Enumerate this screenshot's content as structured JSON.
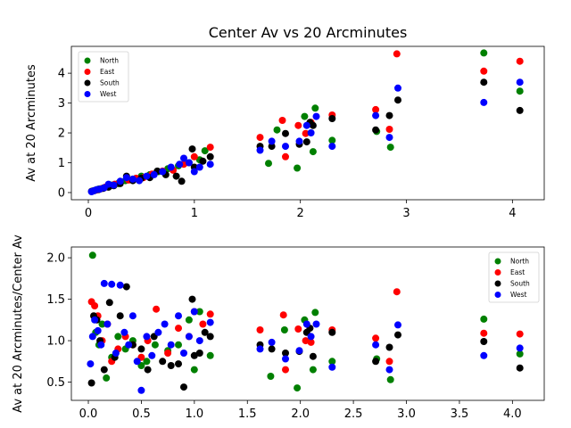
{
  "chart_data": [
    {
      "type": "scatter",
      "title": "Center Av vs 20 Arcminutes",
      "xlabel": "",
      "ylabel": "Av at 20 Arcminutes",
      "xlim": [
        -0.16,
        4.3
      ],
      "ylim": [
        -0.24,
        4.9
      ],
      "xticks": [
        0,
        1,
        2,
        3,
        4
      ],
      "yticks": [
        0,
        1,
        2,
        3,
        4
      ],
      "legend_position": "upper-left",
      "series": [
        {
          "name": "North",
          "color": "#008000",
          "x": [
            0.04,
            0.07,
            0.1,
            0.14,
            0.18,
            0.22,
            0.28,
            0.35,
            0.42,
            0.5,
            0.58,
            0.66,
            0.75,
            0.85,
            0.95,
            1.05,
            1.1,
            1.7,
            1.78,
            1.97,
            2.04,
            2.12,
            2.14,
            2.3,
            2.72,
            2.85,
            3.73,
            4.07
          ],
          "y": [
            0.05,
            0.08,
            0.12,
            0.15,
            0.2,
            0.25,
            0.3,
            0.4,
            0.45,
            0.55,
            0.6,
            0.7,
            0.8,
            0.9,
            1.0,
            1.1,
            1.4,
            0.98,
            2.1,
            0.82,
            2.55,
            1.37,
            2.83,
            1.75,
            2.05,
            1.52,
            4.68,
            3.4
          ]
        },
        {
          "name": "East",
          "color": "#ff0000",
          "x": [
            0.05,
            0.08,
            0.12,
            0.16,
            0.2,
            0.25,
            0.3,
            0.38,
            0.45,
            0.52,
            0.6,
            0.7,
            0.8,
            0.9,
            1.0,
            1.15,
            1.62,
            1.83,
            1.86,
            1.98,
            2.05,
            2.1,
            2.3,
            2.71,
            2.84,
            2.91,
            3.73,
            4.07
          ],
          "y": [
            0.06,
            0.09,
            0.13,
            0.18,
            0.22,
            0.28,
            0.35,
            0.42,
            0.48,
            0.5,
            0.62,
            0.72,
            0.75,
            0.95,
            1.2,
            1.52,
            1.85,
            2.42,
            1.2,
            2.25,
            1.98,
            2.35,
            2.6,
            2.78,
            2.12,
            4.65,
            4.07,
            4.4
          ]
        },
        {
          "name": "South",
          "color": "#000000",
          "x": [
            0.03,
            0.06,
            0.1,
            0.14,
            0.19,
            0.24,
            0.3,
            0.36,
            0.42,
            0.5,
            0.58,
            0.65,
            0.73,
            0.83,
            0.88,
            0.98,
            1.0,
            1.08,
            1.15,
            1.62,
            1.73,
            1.86,
            1.99,
            2.06,
            2.09,
            2.12,
            2.3,
            2.71,
            2.84,
            2.92,
            3.73,
            4.07
          ],
          "y": [
            0.04,
            0.07,
            0.1,
            0.14,
            0.18,
            0.23,
            0.3,
            0.55,
            0.4,
            0.48,
            0.5,
            0.72,
            0.6,
            0.55,
            0.38,
            1.46,
            0.85,
            1.05,
            1.2,
            1.55,
            1.55,
            1.98,
            1.62,
            1.7,
            2.35,
            2.25,
            2.48,
            2.1,
            2.58,
            3.1,
            3.7,
            2.75
          ]
        },
        {
          "name": "West",
          "color": "#0000ff",
          "x": [
            0.03,
            0.05,
            0.08,
            0.11,
            0.15,
            0.19,
            0.24,
            0.3,
            0.36,
            0.42,
            0.48,
            0.55,
            0.62,
            0.7,
            0.78,
            0.86,
            0.9,
            0.95,
            1.0,
            1.05,
            1.15,
            1.62,
            1.73,
            1.86,
            1.99,
            2.06,
            2.1,
            2.15,
            2.3,
            2.71,
            2.84,
            2.92,
            3.73,
            4.07
          ],
          "y": [
            0.03,
            0.06,
            0.1,
            0.12,
            0.16,
            0.28,
            0.25,
            0.38,
            0.5,
            0.45,
            0.4,
            0.55,
            0.6,
            0.7,
            0.85,
            0.95,
            1.15,
            1.0,
            0.7,
            0.85,
            0.95,
            1.42,
            1.72,
            1.55,
            1.72,
            2.25,
            2.0,
            2.55,
            1.55,
            2.58,
            1.85,
            3.5,
            3.02,
            3.7
          ]
        }
      ]
    },
    {
      "type": "scatter",
      "title": "",
      "xlabel": "",
      "ylabel": "Av at 20 Arcminutes/Center Av",
      "xlim": [
        -0.16,
        4.3
      ],
      "ylim": [
        0.28,
        2.13
      ],
      "xticks": [
        0.0,
        0.5,
        1.0,
        1.5,
        2.0,
        2.5,
        3.0,
        3.5,
        4.0
      ],
      "xtick_labels": [
        "0.0",
        "0.5",
        "1.0",
        "1.5",
        "2.0",
        "2.5",
        "3.0",
        "3.5",
        "4.0"
      ],
      "yticks": [
        0.5,
        1.0,
        1.5,
        2.0
      ],
      "ytick_labels": [
        "0.5",
        "1.0",
        "1.5",
        "2.0"
      ],
      "legend_position": "upper-right",
      "series": [
        {
          "name": "North",
          "color": "#008000",
          "x": [
            0.04,
            0.07,
            0.1,
            0.13,
            0.17,
            0.22,
            0.28,
            0.35,
            0.42,
            0.5,
            0.55,
            0.63,
            0.75,
            0.85,
            0.95,
            1.0,
            1.05,
            1.15,
            1.72,
            1.85,
            1.97,
            2.04,
            2.12,
            2.14,
            2.3,
            2.72,
            2.85,
            3.73,
            4.07
          ],
          "y": [
            2.03,
            1.1,
            0.95,
            1.2,
            0.55,
            0.8,
            1.05,
            0.9,
            1.0,
            0.7,
            0.75,
            0.95,
            0.88,
            0.95,
            1.25,
            0.65,
            1.35,
            0.82,
            0.57,
            1.13,
            0.43,
            1.25,
            0.65,
            1.34,
            0.75,
            0.78,
            0.53,
            1.26,
            0.84
          ]
        },
        {
          "name": "East",
          "color": "#ff0000",
          "x": [
            0.03,
            0.06,
            0.09,
            0.13,
            0.18,
            0.22,
            0.28,
            0.35,
            0.42,
            0.5,
            0.56,
            0.64,
            0.75,
            0.85,
            0.95,
            1.0,
            1.08,
            1.15,
            1.62,
            1.84,
            1.86,
            1.98,
            2.05,
            2.1,
            2.3,
            2.71,
            2.84,
            2.91,
            3.73,
            4.07
          ],
          "y": [
            1.47,
            1.42,
            1.3,
            1.0,
            1.2,
            0.75,
            0.9,
            1.05,
            0.95,
            0.8,
            1.0,
            1.38,
            0.85,
            1.15,
            1.05,
            1.35,
            1.2,
            1.32,
            1.13,
            1.31,
            0.65,
            1.14,
            1.0,
            0.98,
            1.13,
            1.03,
            0.75,
            1.59,
            1.09,
            1.08
          ]
        },
        {
          "name": "South",
          "color": "#000000",
          "x": [
            0.03,
            0.05,
            0.08,
            0.11,
            0.15,
            0.2,
            0.25,
            0.3,
            0.36,
            0.42,
            0.5,
            0.56,
            0.62,
            0.7,
            0.78,
            0.85,
            0.9,
            0.98,
            1.0,
            1.05,
            1.1,
            1.15,
            1.62,
            1.73,
            1.86,
            1.99,
            2.06,
            2.09,
            2.12,
            2.3,
            2.71,
            2.84,
            2.92,
            3.73,
            4.07
          ],
          "y": [
            0.49,
            1.3,
            1.25,
            1.0,
            0.65,
            1.46,
            0.8,
            1.3,
            1.65,
            0.95,
            0.9,
            0.65,
            1.05,
            0.75,
            0.7,
            0.72,
            0.44,
            1.5,
            0.82,
            0.85,
            1.1,
            1.05,
            0.95,
            0.9,
            0.85,
            0.87,
            1.1,
            1.15,
            0.81,
            1.1,
            0.75,
            0.92,
            1.07,
            0.99,
            0.67
          ]
        },
        {
          "name": "West",
          "color": "#0000ff",
          "x": [
            0.02,
            0.04,
            0.06,
            0.09,
            0.12,
            0.15,
            0.18,
            0.22,
            0.26,
            0.3,
            0.34,
            0.38,
            0.42,
            0.46,
            0.5,
            0.55,
            0.6,
            0.66,
            0.72,
            0.78,
            0.85,
            0.9,
            0.95,
            1.0,
            1.05,
            1.15,
            1.62,
            1.73,
            1.86,
            1.99,
            2.06,
            2.1,
            2.15,
            2.3,
            2.71,
            2.84,
            2.92,
            3.73,
            4.07
          ],
          "y": [
            0.72,
            1.05,
            1.25,
            1.12,
            0.95,
            1.69,
            1.2,
            1.68,
            0.85,
            1.67,
            1.1,
            0.95,
            1.3,
            0.75,
            0.4,
            1.05,
            0.82,
            1.1,
            1.2,
            0.95,
            1.3,
            0.85,
            1.05,
            1.35,
            1.0,
            1.22,
            0.9,
            0.98,
            0.78,
            0.88,
            1.2,
            1.05,
            1.2,
            0.68,
            0.95,
            0.65,
            1.19,
            0.82,
            0.91
          ]
        }
      ]
    }
  ]
}
